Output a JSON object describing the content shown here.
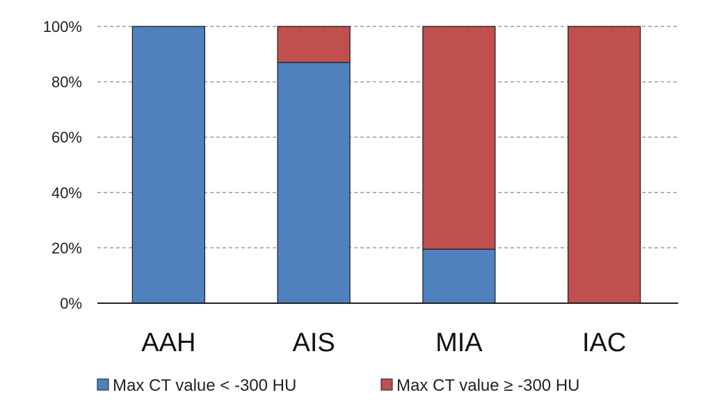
{
  "chart_data": {
    "type": "bar",
    "stacked": true,
    "categories": [
      "AAH",
      "AIS",
      "MIA",
      "IAC"
    ],
    "series": [
      {
        "name": "Max CT value < -300 HU",
        "color": "#4f81bd",
        "values": [
          100,
          87,
          19.5,
          0
        ]
      },
      {
        "name": "Max CT value ≥ -300 HU",
        "color": "#c0504d",
        "values": [
          0,
          13,
          80.5,
          100
        ]
      }
    ],
    "ylim": [
      0,
      100
    ],
    "yticks": [
      "0%",
      "20%",
      "40%",
      "60%",
      "80%",
      "100%"
    ],
    "ytick_values": [
      0,
      20,
      40,
      60,
      80,
      100
    ],
    "grid": true,
    "legend": "bottom"
  }
}
